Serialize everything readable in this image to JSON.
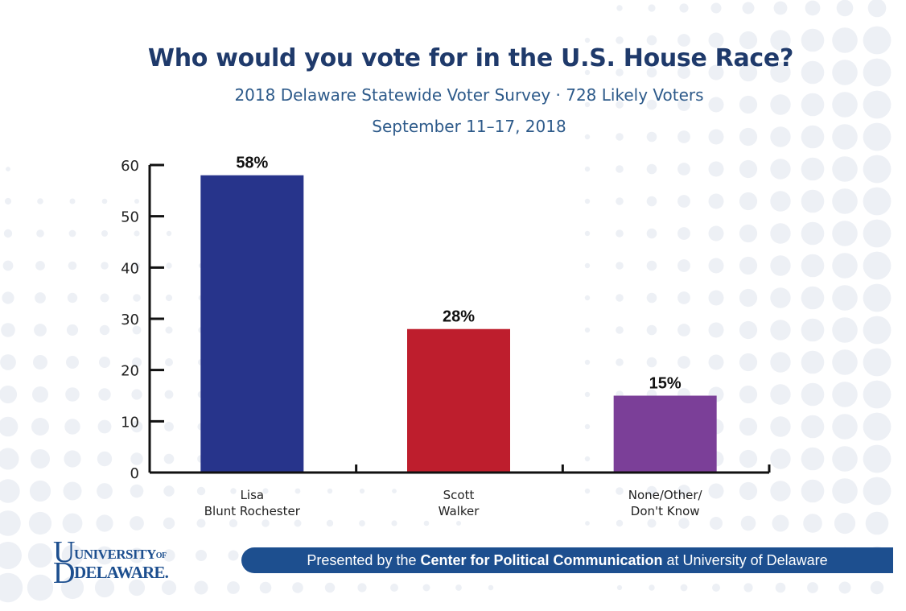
{
  "header": {
    "title": "Who would you vote for in the U.S. House Race?",
    "subtitle_line1": "2018 Delaware Statewide Voter Survey · 728 Likely Voters",
    "subtitle_line2": "September 11–17, 2018"
  },
  "chart_data": {
    "type": "bar",
    "title": "Who would you vote for in the U.S. House Race?",
    "categories": [
      [
        "Lisa",
        "Blunt Rochester"
      ],
      [
        "Scott",
        "Walker"
      ],
      [
        "None/Other/",
        "Don't Know"
      ]
    ],
    "values": [
      58,
      28,
      15
    ],
    "data_labels": [
      "58%",
      "28%",
      "15%"
    ],
    "colors": [
      "#27348b",
      "#be1e2d",
      "#7b3f98"
    ],
    "ylim": [
      0,
      60
    ],
    "yticks": [
      0,
      10,
      20,
      30,
      40,
      50,
      60
    ],
    "xlabel": "",
    "ylabel": "",
    "grid": false,
    "legend": "none"
  },
  "logo": {
    "line1": "UNIVERSITY",
    "line1_suffix": "OF",
    "line2": "DELAWARE.",
    "color": "#1d4f8f"
  },
  "footer": {
    "prefix": "Presented by the ",
    "bold": "Center for Political Communication",
    "suffix": " at University of Delaware",
    "bar_color": "#1d4f8f"
  }
}
